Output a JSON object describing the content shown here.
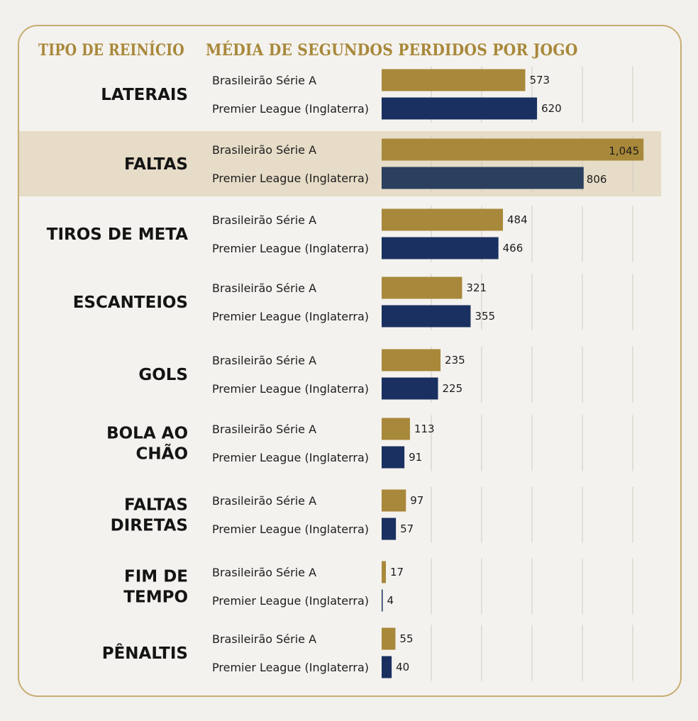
{
  "chart_data": {
    "type": "bar",
    "orientation": "horizontal",
    "title_left": "TIPO DE REINÍCIO",
    "title_right": "MÉDIA DE SEGUNDOS PERDIDOS POR JOGO",
    "categories": [
      {
        "lines": [
          "LATERAIS"
        ]
      },
      {
        "lines": [
          "FALTAS"
        ]
      },
      {
        "lines": [
          "TIROS DE META"
        ]
      },
      {
        "lines": [
          "ESCANTEIOS"
        ]
      },
      {
        "lines": [
          "GOLS"
        ]
      },
      {
        "lines": [
          "BOLA AO",
          "CHÃO"
        ]
      },
      {
        "lines": [
          "FALTAS",
          "DIRETAS"
        ]
      },
      {
        "lines": [
          "FIM DE",
          "TEMPO"
        ]
      },
      {
        "lines": [
          "PÊNALTIS"
        ]
      }
    ],
    "series": [
      {
        "name": "Brasileirão Série A",
        "color": "#a8883a",
        "values": [
          573,
          1045,
          484,
          321,
          235,
          113,
          97,
          17,
          55
        ],
        "labels": [
          "573",
          "1,045",
          "484",
          "321",
          "235",
          "113",
          "97",
          "17",
          "55"
        ]
      },
      {
        "name": "Premier League (Inglaterra)",
        "color": "#1a3060",
        "values": [
          620,
          806,
          466,
          355,
          225,
          91,
          57,
          4,
          40
        ],
        "labels": [
          "620",
          "806",
          "466",
          "355",
          "225",
          "91",
          "57",
          "4",
          "40"
        ]
      }
    ],
    "highlight_category": 1,
    "highlight_colors": {
      "band": "#e6dcc7",
      "series2_bar": "#2b3f5e",
      "series1_label": "#ffffff"
    },
    "grid": true,
    "xlim": [
      0,
      1050
    ]
  }
}
